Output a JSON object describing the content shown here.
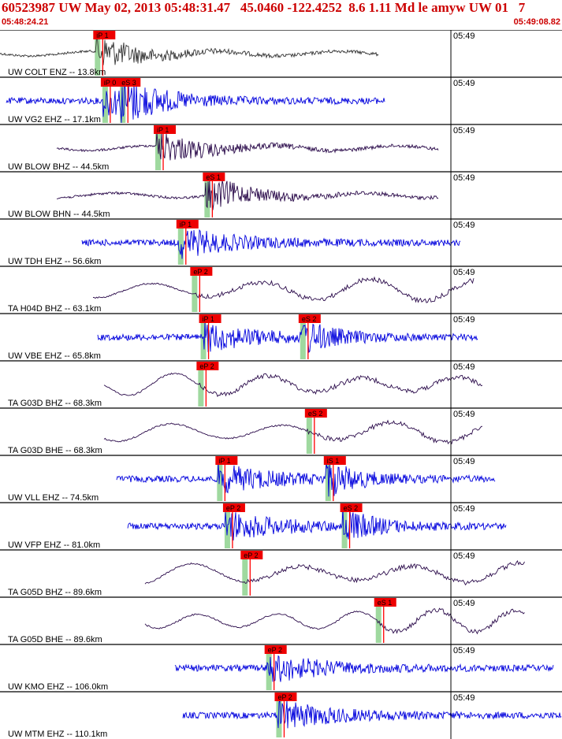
{
  "header": {
    "title": "60523987 UW May 02, 2013 05:48:31.47   45.0460 -122.4252  8.6 1.11 Md le amyw UW 01   7",
    "time_start": "05:48:24.21",
    "time_end": "05:49:08.82"
  },
  "colors": {
    "blue_trace": "#0000dd",
    "purple_trace": "#2a0a4a",
    "dark_trace": "#333333",
    "pick_red": "#ff0000",
    "pick_box": "#ee0000",
    "window_green": "#9fd99f"
  },
  "chart_data": {
    "type": "seismogram-record-section",
    "minute_label": "05:49",
    "traces": [
      {
        "label": "UW COLT ENZ -- 13.8km",
        "trace_color": "dark",
        "picks": [
          {
            "label": "iP 1",
            "time": "05:48:31.8"
          }
        ]
      },
      {
        "label": "UW VG2 EHZ -- 17.1km",
        "trace_color": "blue",
        "picks": [
          {
            "label": "iP 0",
            "time": "05:48:32.4"
          },
          {
            "label": "eS 3",
            "time": "05:48:33.8"
          }
        ]
      },
      {
        "label": "UW BLOW BHZ -- 44.5km",
        "trace_color": "purple",
        "picks": [
          {
            "label": "iP 1",
            "time": "05:48:36.6"
          }
        ]
      },
      {
        "label": "UW BLOW BHN -- 44.5km",
        "trace_color": "purple",
        "picks": [
          {
            "label": "eS 1",
            "time": "05:48:40.5"
          }
        ]
      },
      {
        "label": "UW TDH EHZ -- 56.6km",
        "trace_color": "blue",
        "picks": [
          {
            "label": "iP 1",
            "time": "05:48:38.4"
          }
        ]
      },
      {
        "label": "TA H04D BHZ -- 63.1km",
        "trace_color": "purple",
        "picks": [
          {
            "label": "eP 2",
            "time": "05:48:39.5"
          }
        ]
      },
      {
        "label": "UW VBE EHZ -- 65.8km",
        "trace_color": "blue",
        "picks": [
          {
            "label": "iP 1",
            "time": "05:48:40.2"
          },
          {
            "label": "eS 2",
            "time": "05:48:48.1"
          }
        ]
      },
      {
        "label": "TA G03D BHZ -- 68.3km",
        "trace_color": "purple",
        "picks": [
          {
            "label": "eP 2",
            "time": "05:48:40.0"
          }
        ]
      },
      {
        "label": "TA G03D BHE -- 68.3km",
        "trace_color": "purple",
        "picks": [
          {
            "label": "eS 2",
            "time": "05:48:48.6"
          }
        ]
      },
      {
        "label": "UW VLL EHZ -- 74.5km",
        "trace_color": "blue",
        "picks": [
          {
            "label": "iP 1",
            "time": "05:48:41.5"
          },
          {
            "label": "iS 1",
            "time": "05:48:50.1"
          }
        ]
      },
      {
        "label": "UW VFP EHZ -- 81.0km",
        "trace_color": "blue",
        "picks": [
          {
            "label": "eP 2",
            "time": "05:48:42.1"
          },
          {
            "label": "eS 2",
            "time": "05:48:51.4"
          }
        ]
      },
      {
        "label": "TA G05D BHZ -- 89.6km",
        "trace_color": "purple",
        "picks": [
          {
            "label": "eP 2",
            "time": "05:48:43.5"
          }
        ]
      },
      {
        "label": "TA G05D BHE -- 89.6km",
        "trace_color": "purple",
        "picks": [
          {
            "label": "eS 1",
            "time": "05:48:54.1"
          }
        ]
      },
      {
        "label": "UW KMO EHZ -- 106.0km",
        "trace_color": "blue",
        "picks": [
          {
            "label": "eP 2",
            "time": "05:48:45.4"
          }
        ]
      },
      {
        "label": "UW MTM EHZ -- 110.1km",
        "trace_color": "blue",
        "picks": [
          {
            "label": "eP 2",
            "time": "05:48:46.2"
          }
        ]
      }
    ]
  }
}
